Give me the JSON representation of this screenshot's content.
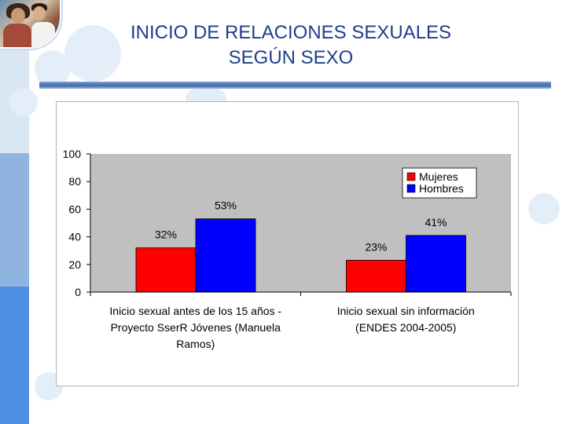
{
  "slide": {
    "title_line1": "INICIO DE RELACIONES SEXUALES",
    "title_line2": "SEGÚN SEXO"
  },
  "colors": {
    "title": "#1f3f8a",
    "plot_area": "#c0c0c0",
    "mujeres": "#ff0000",
    "hombres": "#0000ff"
  },
  "chart_data": {
    "type": "bar",
    "categories": [
      [
        "Inicio sexual antes de los 15 años -",
        "Proyecto SserR Jóvenes (Manuela",
        "Ramos)"
      ],
      [
        "Inicio sexual sin información",
        "(ENDES 2004-2005)"
      ]
    ],
    "series": [
      {
        "name": "Mujeres",
        "values": [
          32,
          23
        ],
        "labels": [
          "32%",
          "23%"
        ]
      },
      {
        "name": "Hombres",
        "values": [
          53,
          41
        ],
        "labels": [
          "53%",
          "41%"
        ]
      }
    ],
    "ylim": [
      0,
      100
    ],
    "yticks": [
      0,
      20,
      40,
      60,
      80,
      100
    ],
    "legend": "top-right",
    "grid": false
  }
}
